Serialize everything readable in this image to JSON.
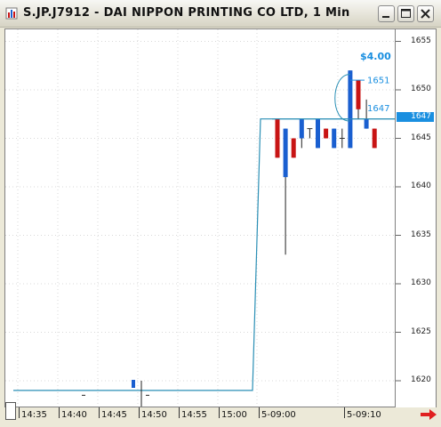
{
  "window": {
    "title": "S.JP.J7912 - DAI NIPPON PRINTING CO LTD, 1 Min",
    "buttons": [
      "minimize",
      "maximize",
      "close"
    ]
  },
  "price_axis": {
    "labels": [
      "1655",
      "1650",
      "1645",
      "1640",
      "1635",
      "1630",
      "1625",
      "1620"
    ],
    "last_price": "1647"
  },
  "time_axis": {
    "labels": [
      "14:35",
      "14:40",
      "14:45",
      "14:50",
      "14:55",
      "15:00",
      "5-09:00",
      "5-09:10"
    ]
  },
  "annotations": {
    "change": "$4.00",
    "level_high": "1651",
    "level_low": "1647"
  },
  "colors": {
    "up": "#1a5fd0",
    "down": "#c81414",
    "line": "#2a8fb5",
    "badge": "#1a8fe0"
  },
  "chart_data": {
    "type": "candlestick",
    "title": "",
    "ylim": [
      1617,
      1657
    ],
    "price_line": [
      1619,
      1619,
      1619,
      1647,
      1647
    ],
    "candles": [
      {
        "open": 1643,
        "high": 1647,
        "low": 1643,
        "close": 1647,
        "dir": "down"
      },
      {
        "open": 1641,
        "high": 1646,
        "low": 1633,
        "close": 1646,
        "dir": "up"
      },
      {
        "open": 1643,
        "high": 1645,
        "low": 1643,
        "close": 1645,
        "dir": "down"
      },
      {
        "open": 1645,
        "high": 1647,
        "low": 1644,
        "close": 1647,
        "dir": "up"
      },
      {
        "open": 1645,
        "high": 1646,
        "low": 1645,
        "close": 1646,
        "dir": "cross"
      },
      {
        "open": 1644,
        "high": 1647,
        "low": 1644,
        "close": 1647,
        "dir": "up"
      },
      {
        "open": 1646,
        "high": 1646,
        "low": 1645,
        "close": 1645,
        "dir": "down"
      },
      {
        "open": 1644,
        "high": 1646,
        "low": 1644,
        "close": 1646,
        "dir": "up"
      },
      {
        "open": 1644,
        "high": 1646,
        "low": 1644,
        "close": 1645,
        "dir": "cross"
      },
      {
        "open": 1644,
        "high": 1652,
        "low": 1644,
        "close": 1652,
        "dir": "up"
      },
      {
        "open": 1648,
        "high": 1651,
        "low": 1647,
        "close": 1651,
        "dir": "down"
      },
      {
        "open": 1646,
        "high": 1649,
        "low": 1646,
        "close": 1647,
        "dir": "up"
      },
      {
        "open": 1644,
        "high": 1646,
        "low": 1644,
        "close": 1646,
        "dir": "down"
      }
    ]
  }
}
